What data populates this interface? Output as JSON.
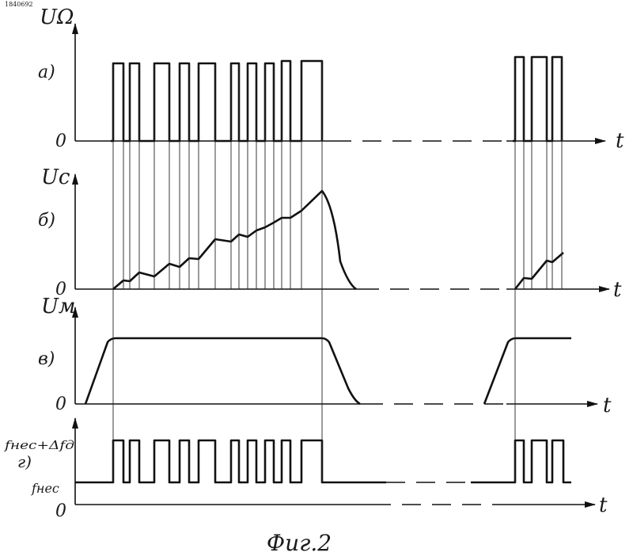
{
  "corner_mark": "1840692",
  "figure_caption": "Фиг.2",
  "panels": [
    {
      "letter": "a)",
      "y_label": "UΩ",
      "zero": "0",
      "x_label": "t"
    },
    {
      "letter": "б)",
      "y_label": "Uc",
      "zero": "0",
      "x_label": "t"
    },
    {
      "letter": "в)",
      "y_label": "Uм",
      "zero": "0",
      "x_label": "t"
    },
    {
      "letter": "г)",
      "zero": "0",
      "x_label": "t",
      "level_high": "fнес+Δfд",
      "level_low": "fнес"
    }
  ]
}
